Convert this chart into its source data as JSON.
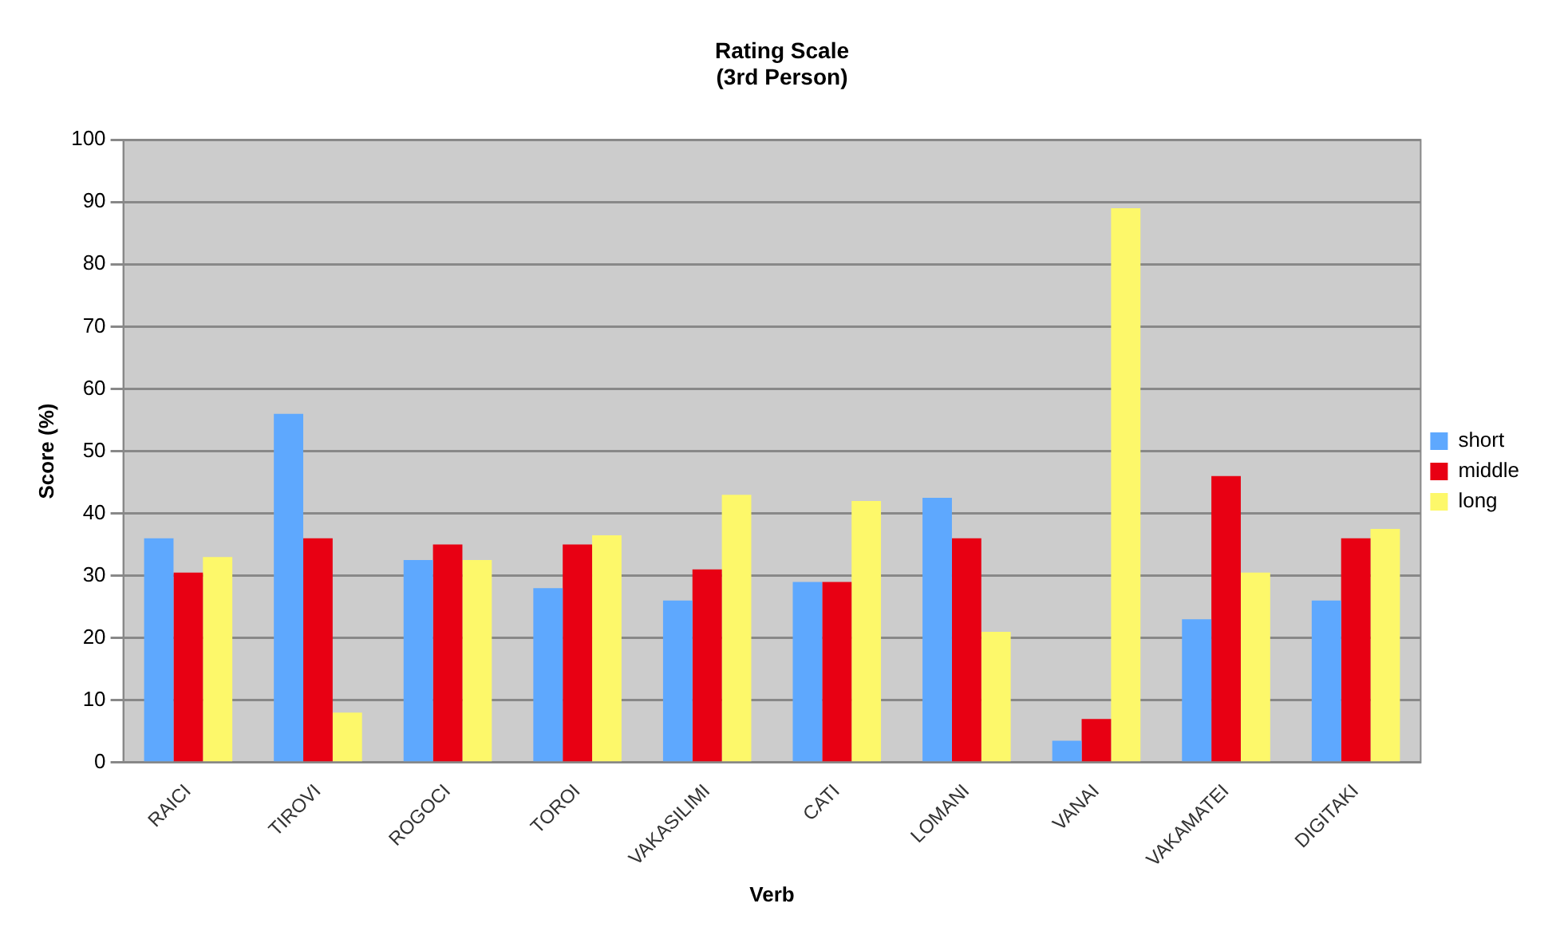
{
  "chart_data": {
    "type": "bar",
    "title": "Rating Scale\n(3rd Person)",
    "xlabel": "Verb",
    "ylabel": "Score (%)",
    "categories": [
      "RAICI",
      "TIROVI",
      "ROGOCI",
      "TOROI",
      "VAKASILIMI",
      "CATI",
      "LOMANI",
      "VANAI",
      "VAKAMATEI",
      "DIGITAKI"
    ],
    "series": [
      {
        "name": "short",
        "color": "#5ea8fe",
        "values": [
          36,
          56,
          32.5,
          28,
          26,
          29,
          42.5,
          3.5,
          23,
          26
        ]
      },
      {
        "name": "middle",
        "color": "#e80013",
        "values": [
          30.5,
          36,
          35,
          35,
          31,
          29,
          36,
          7,
          46,
          36
        ]
      },
      {
        "name": "long",
        "color": "#fdf86a",
        "values": [
          33,
          8,
          32.5,
          36.5,
          43,
          42,
          21,
          89,
          30.5,
          37.5
        ]
      }
    ],
    "ylim": [
      0,
      100
    ],
    "yticks": [
      0,
      10,
      20,
      30,
      40,
      50,
      60,
      70,
      80,
      90,
      100
    ],
    "grid": "y",
    "legend": "right"
  }
}
